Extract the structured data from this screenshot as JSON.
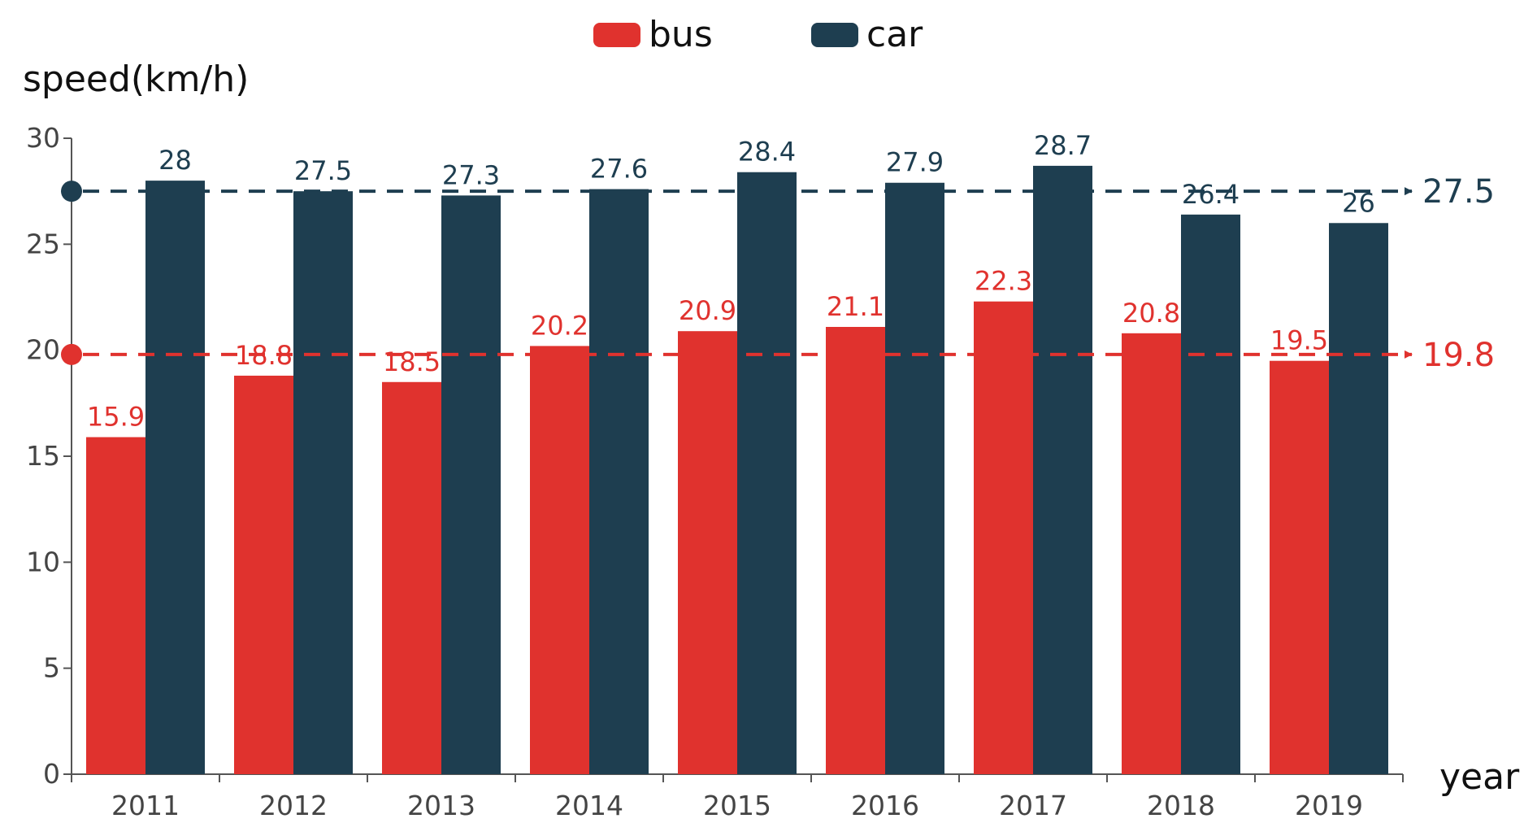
{
  "chart_data": {
    "type": "bar",
    "ylabel": "speed(km/h)",
    "xlabel": "year",
    "ylim": [
      0,
      30
    ],
    "yticks": [
      0,
      5,
      10,
      15,
      20,
      25,
      30
    ],
    "categories": [
      "2011",
      "2012",
      "2013",
      "2014",
      "2015",
      "2016",
      "2017",
      "2018",
      "2019"
    ],
    "series": [
      {
        "name": "bus",
        "color": "#E0322E",
        "values": [
          15.9,
          18.8,
          18.5,
          20.2,
          20.9,
          21.1,
          22.3,
          20.8,
          19.5
        ]
      },
      {
        "name": "car",
        "color": "#1E3E50",
        "values": [
          28,
          27.5,
          27.3,
          27.6,
          28.4,
          27.9,
          28.7,
          26.4,
          26
        ]
      }
    ],
    "reference_lines": [
      {
        "series": "car",
        "value": 27.5,
        "label": "27.5",
        "color": "#1E3E50",
        "style": "dashed-arrow"
      },
      {
        "series": "bus",
        "value": 19.8,
        "label": "19.8",
        "color": "#E0322E",
        "style": "dashed-arrow"
      }
    ],
    "legend": {
      "position": "top-center"
    },
    "grid": false
  }
}
